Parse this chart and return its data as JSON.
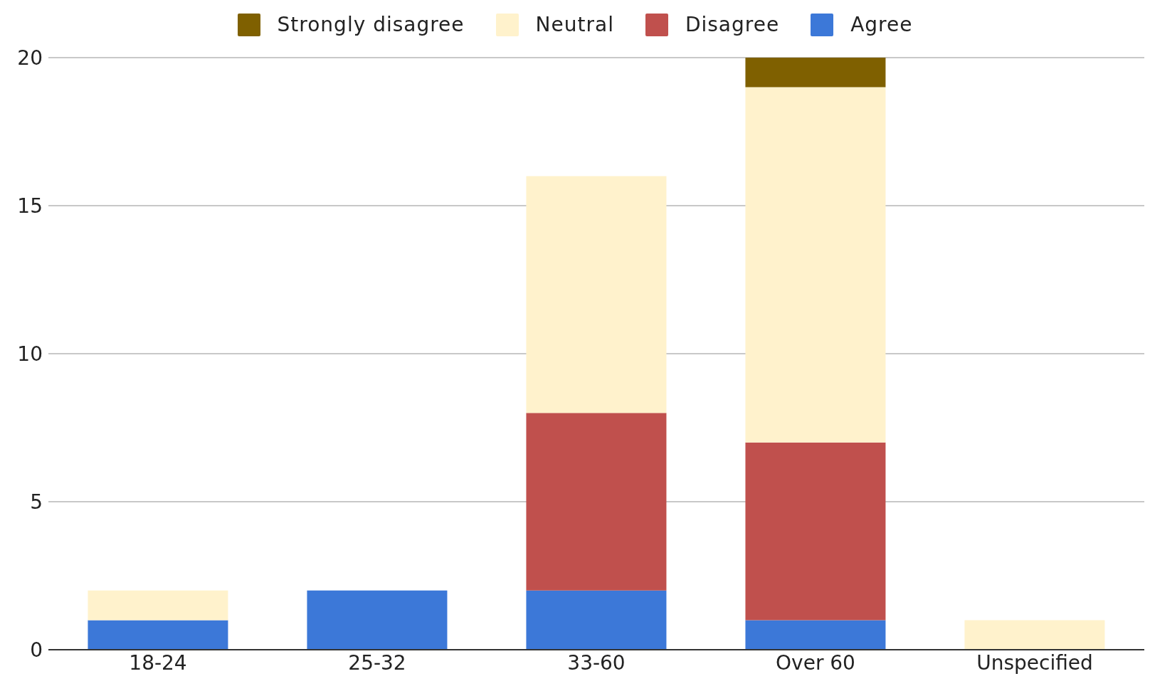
{
  "chart_data": {
    "type": "bar",
    "stacked": true,
    "categories": [
      "18-24",
      "25-32",
      "33-60",
      "Over 60",
      "Unspecified"
    ],
    "series": [
      {
        "name": "Agree",
        "color": "#3c78d8",
        "values": [
          1,
          2,
          2,
          1,
          0
        ]
      },
      {
        "name": "Disagree",
        "color": "#c0504d",
        "values": [
          0,
          0,
          6,
          6,
          0
        ]
      },
      {
        "name": "Neutral",
        "color": "#fff2cc",
        "values": [
          1,
          0,
          8,
          12,
          1
        ]
      },
      {
        "name": "Strongly disagree",
        "color": "#7f6000",
        "values": [
          0,
          0,
          0,
          1,
          0
        ]
      }
    ],
    "ylim": [
      0,
      20
    ],
    "yticks": [
      0,
      5,
      10,
      15,
      20
    ],
    "grid": "y",
    "legend": "top"
  }
}
